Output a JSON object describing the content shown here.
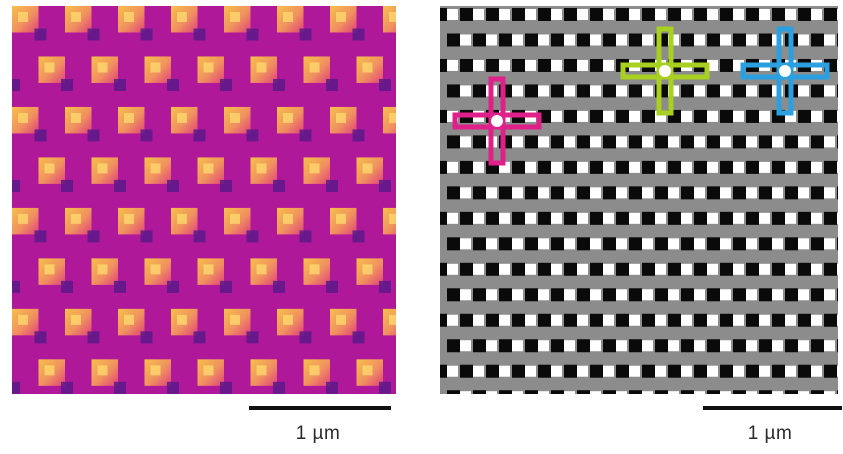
{
  "panels": [
    {
      "id": "left",
      "kind": "afm-height-map",
      "colormap": [
        "#5a1a8a",
        "#b0189a",
        "#e0407a",
        "#f09060",
        "#f7c04a",
        "#ffe070"
      ],
      "scale_bar": {
        "label": "1 µm",
        "color": "#111111"
      }
    },
    {
      "id": "right",
      "kind": "grayscale-phase-map",
      "colors": {
        "background": "#8c8c8c",
        "dark": "#0a0a0a",
        "bright": "#ffffff"
      },
      "scale_bar": {
        "label": "1 µm",
        "color": "#111111"
      },
      "markers": [
        {
          "name": "magenta-cross-marker",
          "color": "#e0208a"
        },
        {
          "name": "green-cross-marker",
          "color": "#a8d020"
        },
        {
          "name": "cyan-cross-marker",
          "color": "#2aa0e0"
        }
      ]
    }
  ]
}
